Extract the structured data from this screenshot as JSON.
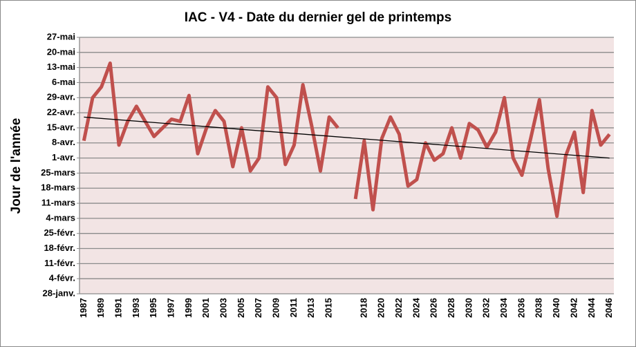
{
  "chart_data": {
    "type": "line",
    "title": "IAC - V4 - Date du dernier gel de printemps",
    "y_label": "Jour de l'année",
    "categories": [
      "1987",
      null,
      "1989",
      null,
      "1991",
      null,
      "1993",
      null,
      "1995",
      null,
      "1997",
      null,
      "1999",
      null,
      "2001",
      null,
      "2003",
      null,
      "2005",
      null,
      "2007",
      null,
      "2009",
      null,
      "2011",
      null,
      "2013",
      null,
      "2015",
      null,
      null,
      null,
      "2018",
      null,
      "2020",
      null,
      "2022",
      null,
      "2024",
      null,
      "2026",
      null,
      "2028",
      null,
      "2030",
      null,
      "2032",
      null,
      "2034",
      null,
      "2036",
      null,
      "2038",
      null,
      "2040",
      null,
      "2042",
      null,
      "2044",
      null,
      "2046"
    ],
    "series": [
      {
        "color": "#c0504d",
        "values": [
          99,
          119,
          124,
          135,
          97,
          108,
          115,
          108,
          101,
          105,
          109,
          108,
          120,
          93,
          105,
          113,
          108,
          87,
          105,
          85,
          91,
          124,
          119,
          88,
          97,
          125,
          106,
          85,
          110,
          105,
          null,
          72,
          99,
          67,
          100,
          110,
          102,
          78,
          81,
          98,
          90,
          93,
          105,
          91,
          107,
          104,
          96,
          103,
          119,
          91,
          83,
          100,
          118,
          86,
          64,
          92,
          103,
          75,
          113,
          97,
          102
        ]
      }
    ],
    "trendline": {
      "color": "#000000",
      "values": [
        110,
        91
      ]
    },
    "ylim": [
      28,
      147
    ],
    "yticks": [
      {
        "value": 28,
        "label": "28-janv."
      },
      {
        "value": 35,
        "label": "4-févr."
      },
      {
        "value": 42,
        "label": "11-févr."
      },
      {
        "value": 49,
        "label": "18-févr."
      },
      {
        "value": 56,
        "label": "25-févr."
      },
      {
        "value": 63,
        "label": "4-mars"
      },
      {
        "value": 70,
        "label": "11-mars"
      },
      {
        "value": 77,
        "label": "18-mars"
      },
      {
        "value": 84,
        "label": "25-mars"
      },
      {
        "value": 91,
        "label": "1-avr."
      },
      {
        "value": 98,
        "label": "8-avr."
      },
      {
        "value": 105,
        "label": "15-avr."
      },
      {
        "value": 112,
        "label": "22-avr."
      },
      {
        "value": 119,
        "label": "29-avr."
      },
      {
        "value": 126,
        "label": "6-mai"
      },
      {
        "value": 133,
        "label": "13-mai"
      },
      {
        "value": 140,
        "label": "20-mai"
      },
      {
        "value": 147,
        "label": "27-mai"
      }
    ],
    "grid": true
  }
}
